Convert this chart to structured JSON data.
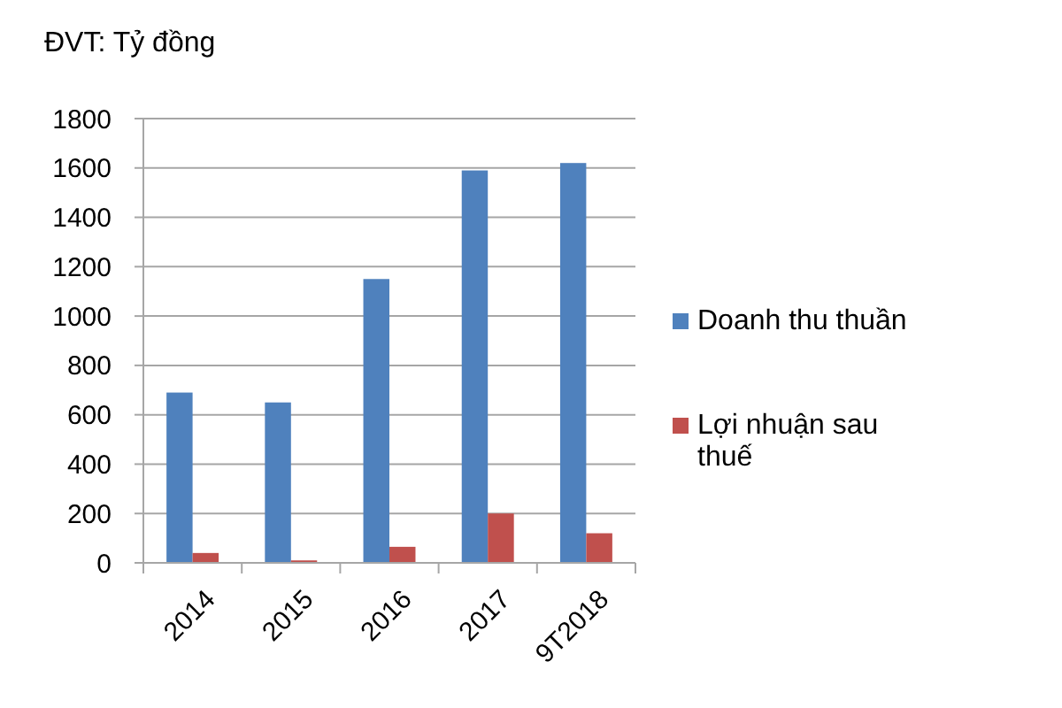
{
  "chart_data": {
    "type": "bar",
    "title": "ĐVT: Tỷ đồng",
    "categories": [
      "2014",
      "2015",
      "2016",
      "2017",
      "9T2018"
    ],
    "series": [
      {
        "name": "Doanh thu thuần",
        "color": "#4f81bd",
        "values": [
          690,
          650,
          1150,
          1590,
          1620
        ]
      },
      {
        "name": "Lợi nhuận sau thuế",
        "color": "#c0504d",
        "values": [
          40,
          10,
          65,
          200,
          120
        ]
      }
    ],
    "ylim": [
      0,
      1800
    ],
    "yticks": [
      0,
      200,
      400,
      600,
      800,
      1000,
      1200,
      1400,
      1600,
      1800
    ],
    "grid": "y",
    "legend": "right"
  }
}
